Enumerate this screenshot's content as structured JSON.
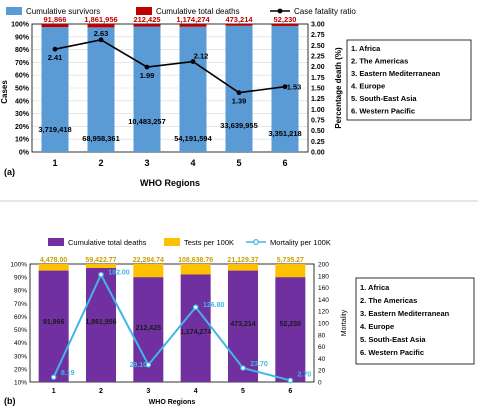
{
  "chart_data": [
    {
      "type": "bar",
      "panel_label": "(a)",
      "categories": [
        "1",
        "2",
        "3",
        "4",
        "5",
        "6"
      ],
      "xlabel": "WHO Regions",
      "ylabel": "Cases",
      "ylabel_right": "Percentage death (%)",
      "ylim": [
        0,
        100
      ],
      "yticks": [
        "0%",
        "10%",
        "20%",
        "30%",
        "40%",
        "50%",
        "60%",
        "70%",
        "80%",
        "90%",
        "100%"
      ],
      "ylim_right": [
        0,
        3
      ],
      "yticks_right": [
        "0.00",
        "0.25",
        "0.50",
        "0.75",
        "1.00",
        "1.25",
        "1.50",
        "1.75",
        "2.00",
        "2.25",
        "2.50",
        "2.75",
        "3.00"
      ],
      "grid": true,
      "legend_position": "top",
      "series": [
        {
          "name": "Cumulative survivors",
          "kind": "bar",
          "color": "#5b9bd5",
          "labels": [
            "3,719,418",
            "68,958,361",
            "10,483,257",
            "54,191,594",
            "33,639,955",
            "3,351,218"
          ]
        },
        {
          "name": "Cumulative total deaths",
          "kind": "bar",
          "color": "#c00000",
          "labels": [
            "91,866",
            "1,861,956",
            "212,425",
            "1,174,274",
            "473,214",
            "52,230"
          ]
        },
        {
          "name": "Case fatality ratio",
          "kind": "line",
          "axis": "right",
          "color": "#000000",
          "values": [
            2.41,
            2.63,
            1.99,
            2.12,
            1.39,
            1.53
          ],
          "labels": [
            "2.41",
            "2.63",
            "1.99",
            "2.12",
            "1.39",
            "1.53"
          ]
        }
      ],
      "region_legend": [
        "1.  Africa",
        "2.  The Americas",
        "3.  Eastern Mediterranean",
        "4.  Europe",
        "5.  South-East Asia",
        "6.  Western Pacific"
      ]
    },
    {
      "type": "bar",
      "panel_label": "(b)",
      "categories": [
        "1",
        "2",
        "3",
        "4",
        "5",
        "6"
      ],
      "xlabel": "WHO Regions",
      "ylabel": "",
      "ylabel_right": "Mortality",
      "ylim": [
        10,
        100
      ],
      "yticks": [
        "10%",
        "20%",
        "30%",
        "40%",
        "50%",
        "60%",
        "70%",
        "80%",
        "90%",
        "100%"
      ],
      "ylim_right": [
        0,
        200
      ],
      "yticks_right": [
        "0",
        "20",
        "40",
        "60",
        "80",
        "100",
        "120",
        "140",
        "160",
        "180",
        "200"
      ],
      "grid": false,
      "legend_position": "top",
      "series": [
        {
          "name": "Cumulative total deaths",
          "kind": "bar",
          "color": "#7030a0",
          "labels": [
            "91,866",
            "1,861,956",
            "212,425",
            "1,174,274",
            "473,214",
            "52,230"
          ]
        },
        {
          "name": "Tests per 100K",
          "kind": "bar",
          "color": "#ffc000",
          "labels": [
            "4,478.00",
            "59,422.77",
            "22,284.74",
            "108,638.76",
            "21,129.37",
            "5,735.27"
          ]
        },
        {
          "name": "Mortality per 100K",
          "kind": "line",
          "axis": "right",
          "color": "#41b6e6",
          "values": [
            8.19,
            182.0,
            29.1,
            126.8,
            23.7,
            2.7
          ],
          "labels": [
            "8.19",
            "182.00",
            "29.10",
            "126.80",
            "23.70",
            "2.70"
          ]
        }
      ],
      "region_legend": [
        "1.  Africa",
        "2.  The Americas",
        "3.  Eastern Mediterranean",
        "4.  Europe",
        "5.  South-East Asia",
        "6.  Western Pacific"
      ]
    }
  ]
}
